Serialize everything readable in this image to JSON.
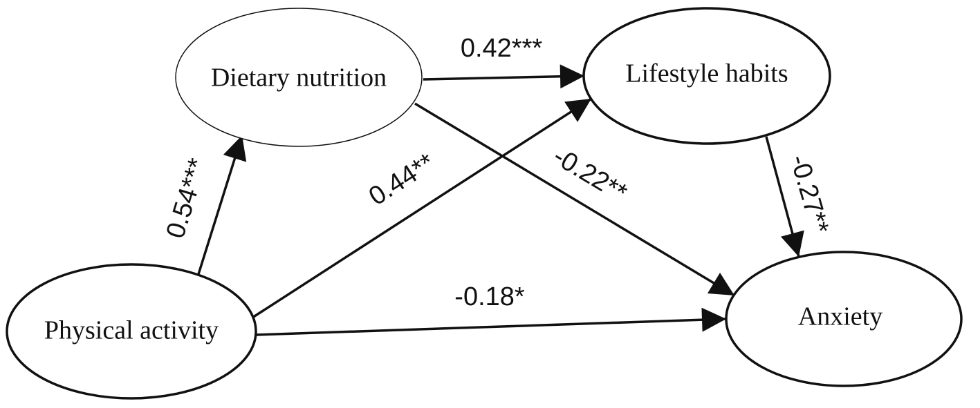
{
  "nodes": [
    {
      "label": "Dietary nutrition"
    },
    {
      "label": "Lifestyle habits"
    },
    {
      "label": "Physical activity"
    },
    {
      "label": "Anxiety"
    }
  ],
  "edges": [
    {
      "label": "0.54***"
    },
    {
      "label": "0.44**"
    },
    {
      "label": "0.42***"
    },
    {
      "label": "-0.22**"
    },
    {
      "label": "-0.27**"
    },
    {
      "label": "-0.18*"
    }
  ]
}
